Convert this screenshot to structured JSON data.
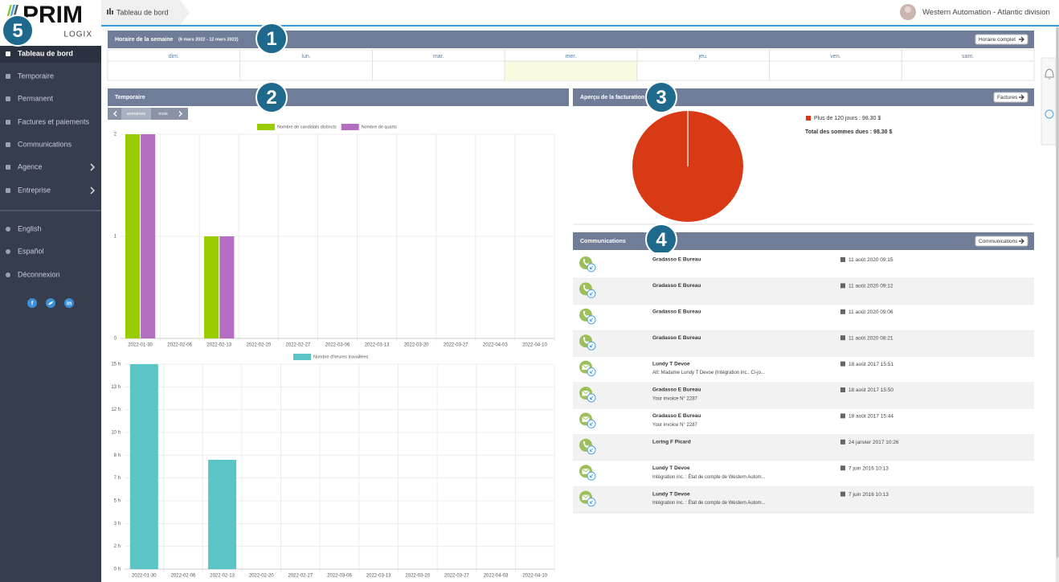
{
  "sidebar": {
    "logo": "PRIM",
    "logo_sub": "LOGIX",
    "badge": "5",
    "menu": [
      "Tableau de bord",
      "Temporaire",
      "Permanent",
      "Factures et paiements",
      "Communications",
      "Agence",
      "Entreprise"
    ],
    "languages": [
      "English",
      "Español",
      "Déconnexion"
    ],
    "social": [
      "f",
      "in"
    ]
  },
  "header": {
    "breadcrumb": "Tableau de bord",
    "account": "Western Automation - Atlantic division"
  },
  "schedule": {
    "badge": "1",
    "title": "Horaire de la semaine",
    "period": "(6 mars 2022 - 12 mars 2022)",
    "button": "Horaire complet",
    "days": [
      "dim.",
      "lun.",
      "mar.",
      "mer.",
      "jeu.",
      "ven.",
      "sam."
    ]
  },
  "temporaire": {
    "badge": "2",
    "title": "Temporaire",
    "toggles": [
      "semaines",
      "mois"
    ]
  },
  "billing": {
    "badge": "3",
    "title": "Aperçu de la facturation",
    "button": "Factures",
    "total": "Total des sommes dues : 98.30 $"
  },
  "communications": {
    "badge": "4",
    "title": "Communications",
    "button": "Communications",
    "items": [
      {
        "kind": "phone",
        "name": "Gradasso E Bureau",
        "date": "11 août 2020 09:15"
      },
      {
        "kind": "phone",
        "name": "Gradasso E Bureau",
        "date": "11 août 2020 09:12"
      },
      {
        "kind": "phone",
        "name": "Gradasso E Bureau",
        "date": "11 août 2020 09:06"
      },
      {
        "kind": "phone",
        "name": "Gradasso E Bureau",
        "date": "11 août 2020 08:21"
      },
      {
        "kind": "mail",
        "name": "Lundy T Devoe",
        "detail": "Att: Madame Lundy T Devoe (Intégration inc.. Ci-jo...",
        "date": "18 août 2017 15:51"
      },
      {
        "kind": "mail",
        "name": "Gradasso E Bureau",
        "detail": "Your invoice N° 2287",
        "date": "18 août 2017 15:50"
      },
      {
        "kind": "mail",
        "name": "Gradasso E Bureau",
        "detail": "Your invoice N° 2287",
        "date": "18 août 2017 15:44"
      },
      {
        "kind": "phone",
        "name": "Loring F Picard",
        "date": "24 janvier 2017 10:26"
      },
      {
        "kind": "mail",
        "name": "Lundy T Devoe",
        "detail": "Intégration inc. : État de compte de Western Autom...",
        "date": "7 juin 2016 10:13"
      },
      {
        "kind": "mail",
        "name": "Lundy T Devoe",
        "detail": "Intégration inc. : État de compte de Western Autom...",
        "date": "7 juin 2016 10:13"
      }
    ]
  },
  "chart_data": [
    {
      "type": "bar",
      "categories": [
        "2022-01-30",
        "2022-02-06",
        "2022-02-13",
        "2022-02-20",
        "2022-02-27",
        "2022-03-06",
        "2022-03-13",
        "2022-03-20",
        "2022-03-27",
        "2022-04-03",
        "2022-04-10"
      ],
      "series": [
        {
          "name": "Nombre de candidats distincts",
          "color": "#99cc00",
          "values": [
            2,
            0,
            1,
            0,
            0,
            0,
            0,
            0,
            0,
            0,
            0
          ]
        },
        {
          "name": "Nombre de quarts",
          "color": "#b36ec2",
          "values": [
            2,
            0,
            1,
            0,
            0,
            0,
            0,
            0,
            0,
            0,
            0
          ]
        }
      ],
      "ylim": [
        0,
        2
      ],
      "yticks": [
        0,
        1,
        2
      ],
      "grid": true
    },
    {
      "type": "bar",
      "categories": [
        "2022-01-30",
        "2022-02-06",
        "2022-02-13",
        "2022-02-20",
        "2022-02-27",
        "2022-03-06",
        "2022-03-13",
        "2022-03-20",
        "2022-03-27",
        "2022-04-03",
        "2022-04-10"
      ],
      "series": [
        {
          "name": "Nombre d'heures travaillées",
          "color": "#5bc5c5",
          "values": [
            15,
            0,
            8,
            0,
            0,
            0,
            0,
            0,
            0,
            0,
            0
          ]
        }
      ],
      "ylim": [
        0,
        15
      ],
      "yticks": [
        {
          "value": 0,
          "label": "0 h"
        },
        {
          "value": 1.67,
          "label": "2 h"
        },
        {
          "value": 3.33,
          "label": "3 h"
        },
        {
          "value": 5,
          "label": "5 h"
        },
        {
          "value": 6.67,
          "label": "7 h"
        },
        {
          "value": 8.33,
          "label": "8 h"
        },
        {
          "value": 10,
          "label": "10 h"
        },
        {
          "value": 11.67,
          "label": "12 h"
        },
        {
          "value": 13.33,
          "label": "13 h"
        },
        {
          "value": 15,
          "label": "15 h"
        }
      ],
      "grid": true
    },
    {
      "type": "pie",
      "categories": [
        "Plus de 120 jours : 98.30 $"
      ],
      "values": [
        98.3
      ],
      "colors": [
        "#d93a16"
      ]
    }
  ]
}
